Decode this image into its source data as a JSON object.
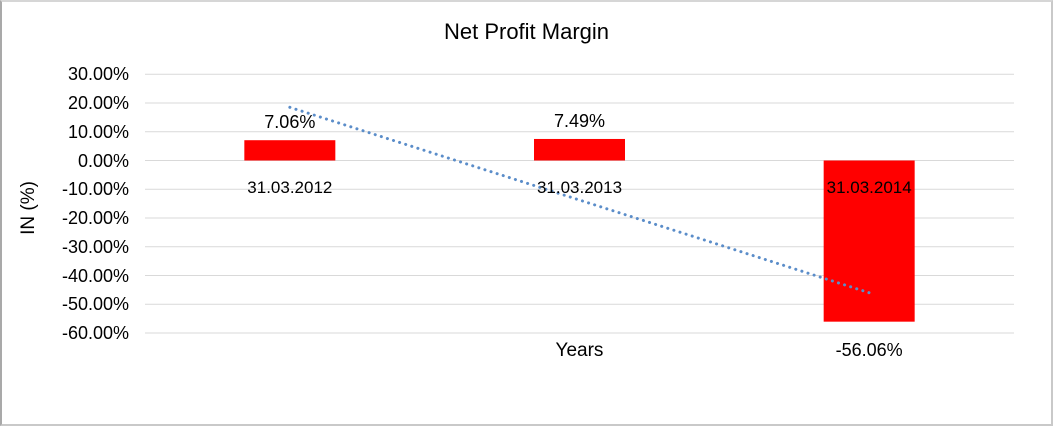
{
  "frame": {
    "background_color": "#ffffff",
    "border_color": "#c9c9c9"
  },
  "chart_data": {
    "type": "bar",
    "title": "Net Profit Margin",
    "xlabel": "Years",
    "ylabel": "IN (%)",
    "categories": [
      "31.03.2012",
      "31.03.2013",
      "31.03.2014"
    ],
    "values": [
      7.06,
      7.49,
      -56.06
    ],
    "data_labels": [
      "7.06%",
      "7.49%",
      "-56.06%"
    ],
    "yticks": [
      30,
      20,
      10,
      0,
      -10,
      -20,
      -30,
      -40,
      -50,
      -60
    ],
    "ytick_labels": [
      "30.00%",
      "20.00%",
      "10.00%",
      "0.00%",
      "-10.00%",
      "-20.00%",
      "-30.00%",
      "-40.00%",
      "-50.00%",
      "-60.00%"
    ],
    "ylim": [
      -60,
      30
    ],
    "grid": true,
    "legend": false,
    "bar_color": "#ff0000",
    "gridline_color": "#d9d9d9",
    "text_color": "#000000",
    "trendline": {
      "type": "linear",
      "style": "dotted",
      "color": "#5b8dc9",
      "start_pct": 18.5,
      "end_pct": -46.0
    }
  }
}
